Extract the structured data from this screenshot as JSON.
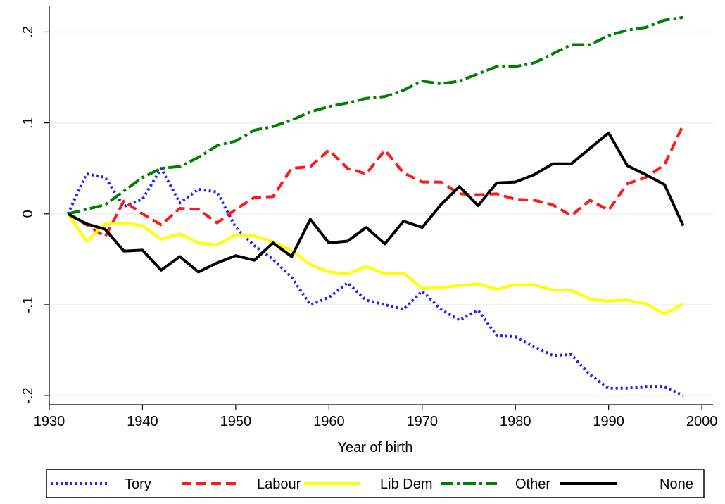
{
  "chart_data": {
    "type": "line",
    "x_label": "Year of birth",
    "x": [
      1932,
      1934,
      1936,
      1938,
      1940,
      1942,
      1944,
      1946,
      1948,
      1950,
      1952,
      1954,
      1956,
      1958,
      1960,
      1962,
      1964,
      1966,
      1968,
      1970,
      1972,
      1974,
      1976,
      1978,
      1980,
      1982,
      1984,
      1986,
      1988,
      1990,
      1992,
      1994,
      1996,
      1998
    ],
    "series": [
      {
        "name": "Tory",
        "color": "#1f1fff",
        "values": [
          0,
          0.044,
          0.04,
          0.008,
          0.016,
          0.05,
          0.012,
          0.027,
          0.024,
          -0.015,
          -0.035,
          -0.05,
          -0.07,
          -0.1,
          -0.092,
          -0.076,
          -0.095,
          -0.1,
          -0.105,
          -0.085,
          -0.105,
          -0.117,
          -0.106,
          -0.134,
          -0.135,
          -0.146,
          -0.156,
          -0.155,
          -0.177,
          -0.192,
          -0.192,
          -0.19,
          -0.19,
          -0.2
        ]
      },
      {
        "name": "Labour",
        "color": "#ff1a1a",
        "values": [
          0,
          -0.012,
          -0.025,
          0.014,
          0.0,
          -0.012,
          0.006,
          0.005,
          -0.01,
          0.005,
          0.018,
          0.019,
          0.05,
          0.052,
          0.07,
          0.05,
          0.044,
          0.07,
          0.045,
          0.035,
          0.035,
          0.022,
          0.021,
          0.022,
          0.016,
          0.015,
          0.01,
          -0.002,
          0.015,
          0.004,
          0.033,
          0.04,
          0.054,
          0.098
        ]
      },
      {
        "name": "Lib Dem",
        "color": "#ffff00",
        "values": [
          0,
          -0.03,
          -0.011,
          -0.01,
          -0.013,
          -0.028,
          -0.022,
          -0.032,
          -0.034,
          -0.023,
          -0.024,
          -0.031,
          -0.04,
          -0.056,
          -0.064,
          -0.066,
          -0.058,
          -0.066,
          -0.065,
          -0.082,
          -0.081,
          -0.079,
          -0.077,
          -0.083,
          -0.078,
          -0.078,
          -0.084,
          -0.084,
          -0.094,
          -0.096,
          -0.095,
          -0.099,
          -0.11,
          -0.099
        ]
      },
      {
        "name": "Other",
        "color": "#008000",
        "values": [
          0,
          0.005,
          0.01,
          0.025,
          0.04,
          0.05,
          0.052,
          0.062,
          0.075,
          0.08,
          0.092,
          0.096,
          0.103,
          0.112,
          0.118,
          0.122,
          0.127,
          0.129,
          0.136,
          0.146,
          0.143,
          0.146,
          0.154,
          0.162,
          0.162,
          0.166,
          0.176,
          0.186,
          0.186,
          0.196,
          0.202,
          0.205,
          0.213,
          0.216
        ]
      },
      {
        "name": "None",
        "color": "#000000",
        "values": [
          0,
          -0.011,
          -0.017,
          -0.041,
          -0.04,
          -0.062,
          -0.047,
          -0.064,
          -0.054,
          -0.046,
          -0.051,
          -0.032,
          -0.047,
          -0.006,
          -0.032,
          -0.03,
          -0.015,
          -0.033,
          -0.008,
          -0.015,
          0.01,
          0.03,
          0.009,
          0.034,
          0.035,
          0.043,
          0.055,
          0.055,
          0.072,
          0.089,
          0.053,
          0.043,
          0.032,
          -0.013
        ]
      }
    ],
    "xlim": [
      1930,
      2001.2
    ],
    "xticks": [
      1930,
      1940,
      1950,
      1960,
      1970,
      1980,
      1990,
      2000
    ],
    "ylim": [
      -0.21,
      0.229
    ],
    "yticks": [
      {
        "value": -0.2,
        "label": "-.2"
      },
      {
        "value": -0.1,
        "label": "-.1"
      },
      0,
      {
        "value": 0.1,
        "label": ".1"
      },
      {
        "value": 0.2,
        "label": ".2"
      }
    ],
    "grid": true,
    "legend": "bottom"
  }
}
